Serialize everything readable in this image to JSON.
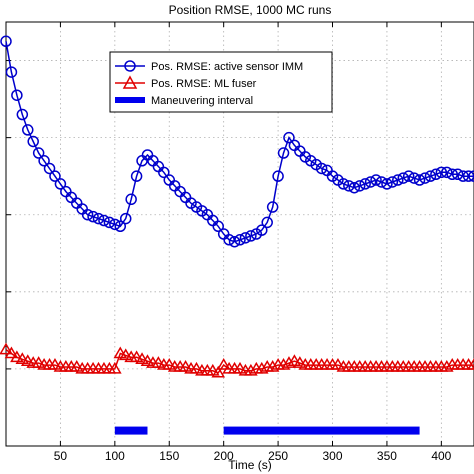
{
  "chart_data": {
    "type": "line",
    "title": "Position RMSE, 1000 MC runs",
    "xlabel": "Time (s)",
    "ylabel": "",
    "xlim": [
      0,
      430
    ],
    "ylim": [
      0,
      110
    ],
    "xticks": [
      50,
      100,
      150,
      200,
      250,
      300,
      350,
      400
    ],
    "yticks": [
      20,
      40,
      60,
      80,
      100
    ],
    "grid": true,
    "legend_position": "top-center",
    "series": [
      {
        "name": "Pos. RMSE: active sensor IMM",
        "color": "#0000cc",
        "marker": "circle",
        "x": [
          0,
          5,
          10,
          15,
          20,
          25,
          30,
          35,
          40,
          45,
          50,
          55,
          60,
          65,
          70,
          75,
          80,
          85,
          90,
          95,
          100,
          105,
          110,
          115,
          120,
          125,
          130,
          135,
          140,
          145,
          150,
          155,
          160,
          165,
          170,
          175,
          180,
          185,
          190,
          195,
          200,
          205,
          210,
          215,
          220,
          225,
          230,
          235,
          240,
          245,
          250,
          255,
          260,
          265,
          270,
          275,
          280,
          285,
          290,
          295,
          300,
          305,
          310,
          315,
          320,
          325,
          330,
          335,
          340,
          345,
          350,
          355,
          360,
          365,
          370,
          375,
          380,
          385,
          390,
          395,
          400,
          405,
          410,
          415,
          420,
          425,
          430
        ],
        "values": [
          105,
          97,
          91,
          86,
          82,
          79,
          76,
          74,
          72,
          70,
          68,
          66,
          64.5,
          63,
          61.5,
          60,
          59.5,
          59,
          58.5,
          58,
          57.5,
          57,
          59,
          64,
          70,
          74,
          75.5,
          74,
          72.5,
          71,
          69,
          67.5,
          66,
          64.5,
          63,
          62,
          61,
          60,
          58.5,
          57,
          55,
          53.5,
          53,
          53.5,
          54,
          54.5,
          55,
          56,
          58,
          62,
          70,
          76,
          80,
          78,
          76.5,
          75,
          74,
          73,
          72,
          71.5,
          70,
          69,
          68,
          67.5,
          67,
          67.5,
          68,
          68.5,
          69,
          68.5,
          68,
          68.5,
          69,
          69.5,
          70,
          69.5,
          69,
          69.5,
          70,
          70.5,
          71,
          71,
          70.5,
          70.5,
          70,
          70,
          70
        ]
      },
      {
        "name": "Pos. RMSE: ML fuser",
        "color": "#e00000",
        "marker": "triangle",
        "x": [
          0,
          5,
          10,
          15,
          20,
          25,
          30,
          35,
          40,
          45,
          50,
          55,
          60,
          65,
          70,
          75,
          80,
          85,
          90,
          95,
          100,
          105,
          110,
          115,
          120,
          125,
          130,
          135,
          140,
          145,
          150,
          155,
          160,
          165,
          170,
          175,
          180,
          185,
          190,
          195,
          200,
          205,
          210,
          215,
          220,
          225,
          230,
          235,
          240,
          245,
          250,
          255,
          260,
          265,
          270,
          275,
          280,
          285,
          290,
          295,
          300,
          305,
          310,
          315,
          320,
          325,
          330,
          335,
          340,
          345,
          350,
          355,
          360,
          365,
          370,
          375,
          380,
          385,
          390,
          395,
          400,
          405,
          410,
          415,
          420,
          425,
          430
        ],
        "values": [
          25,
          24,
          23,
          22.5,
          22,
          21.5,
          21.5,
          21,
          21,
          21,
          20.5,
          20.5,
          20.5,
          20.5,
          20,
          20,
          20,
          20,
          20,
          20,
          20,
          24,
          23.5,
          23,
          23,
          22.5,
          22,
          21.5,
          21.5,
          21,
          21,
          20.5,
          20.5,
          20.5,
          20,
          20,
          19.5,
          19.5,
          19.5,
          19,
          21,
          20,
          20,
          20,
          19.5,
          19.5,
          20,
          20,
          20.5,
          20.5,
          21,
          21,
          21.5,
          22,
          21.5,
          21,
          21,
          21,
          21,
          21,
          21,
          21,
          20.5,
          20.5,
          20.5,
          20.5,
          20.5,
          20.5,
          20.5,
          20.5,
          20.5,
          20.5,
          20.5,
          20.5,
          20.5,
          20.5,
          20.5,
          20.5,
          20.5,
          20.5,
          20.5,
          20.5,
          21,
          21,
          21,
          21,
          21
        ]
      },
      {
        "name": "Maneuvering interval",
        "color": "#0000ee",
        "type": "interval",
        "intervals": [
          [
            100,
            130
          ],
          [
            200,
            380
          ]
        ],
        "level": 4
      }
    ]
  }
}
